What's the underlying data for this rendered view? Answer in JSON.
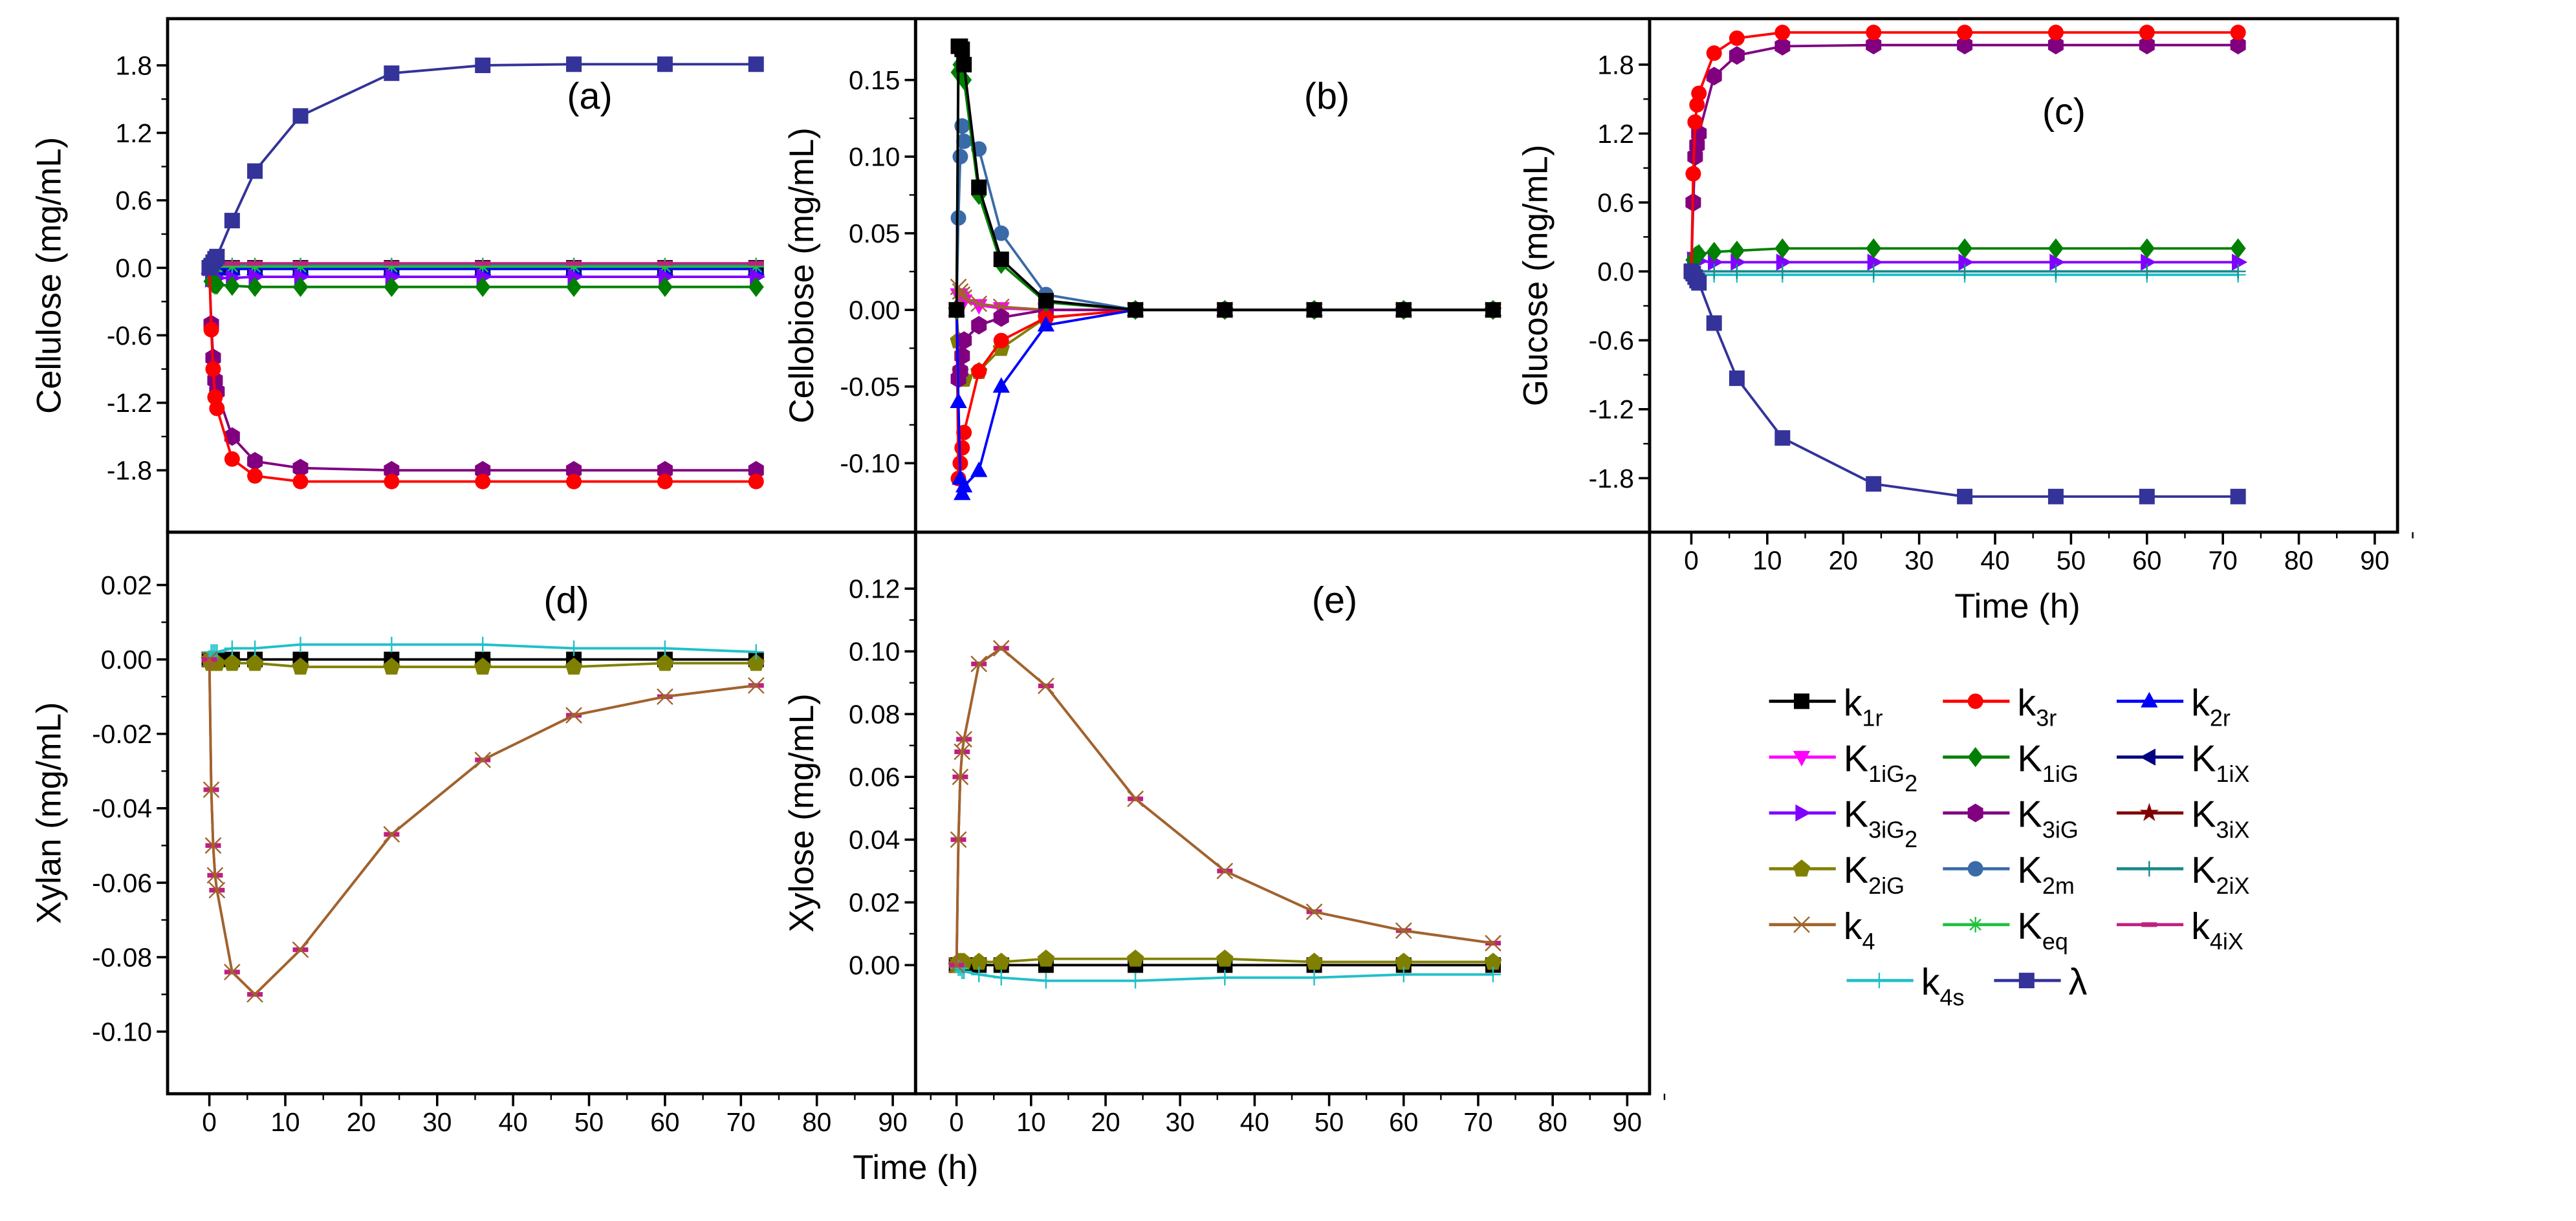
{
  "chart_data": {
    "type": "line",
    "x": [
      0,
      0.25,
      0.5,
      0.75,
      1,
      3,
      6,
      12,
      24,
      36,
      48,
      60,
      72
    ],
    "xlabel": "Time (h)",
    "xlim": [
      -5.5,
      93
    ],
    "xticks": [
      "0",
      "10",
      "20",
      "30",
      "40",
      "50",
      "60",
      "70",
      "80",
      "90"
    ],
    "legend": [
      {
        "id": "k1r",
        "main": "k",
        "sub": "1r",
        "sub2": "",
        "color": "#000000",
        "marker": "square"
      },
      {
        "id": "k3r",
        "main": "k",
        "sub": "3r",
        "sub2": "",
        "color": "#ff0000",
        "marker": "circle"
      },
      {
        "id": "k2r",
        "main": "k",
        "sub": "2r",
        "sub2": "",
        "color": "#0000ff",
        "marker": "triangle-up"
      },
      {
        "id": "K1iG2",
        "main": "K",
        "sub": "1iG",
        "sub2": "2",
        "color": "#ff00ff",
        "marker": "triangle-down"
      },
      {
        "id": "K1iG",
        "main": "K",
        "sub": "1iG",
        "sub2": "",
        "color": "#008000",
        "marker": "diamond"
      },
      {
        "id": "K1iX",
        "main": "K",
        "sub": "1iX",
        "sub2": "",
        "color": "#000080",
        "marker": "triangle-left"
      },
      {
        "id": "K3iG2",
        "main": "K",
        "sub": "3iG",
        "sub2": "2",
        "color": "#8000ff",
        "marker": "triangle-right"
      },
      {
        "id": "K3iG",
        "main": "K",
        "sub": "3iG",
        "sub2": "",
        "color": "#800080",
        "marker": "hexagon"
      },
      {
        "id": "K3iX",
        "main": "K",
        "sub": "3iX",
        "sub2": "",
        "color": "#800000",
        "marker": "star"
      },
      {
        "id": "K2iG",
        "main": "K",
        "sub": "2iG",
        "sub2": "",
        "color": "#808000",
        "marker": "pentagon"
      },
      {
        "id": "K2m",
        "main": "K",
        "sub": "2m",
        "sub2": "",
        "color": "#3a6aa8",
        "marker": "circle"
      },
      {
        "id": "K2iX",
        "main": "K",
        "sub": "2iX",
        "sub2": "",
        "color": "#1a8a8a",
        "marker": "plus"
      },
      {
        "id": "k4",
        "main": "k",
        "sub": "4",
        "sub2": "",
        "color": "#a0642a",
        "marker": "x"
      },
      {
        "id": "Keq",
        "main": "K",
        "sub": "eq",
        "sub2": "",
        "color": "#20c040",
        "marker": "asterisk"
      },
      {
        "id": "k4iX",
        "main": "k",
        "sub": "4iX",
        "sub2": "",
        "color": "#c02080",
        "marker": "dash"
      },
      {
        "id": "k4s",
        "main": "k",
        "sub": "4s",
        "sub2": "",
        "color": "#20c0c8",
        "marker": "plus"
      },
      {
        "id": "lambda",
        "main": "λ",
        "sub": "",
        "sub2": "",
        "color": "#333399",
        "marker": "square"
      }
    ],
    "panels": [
      {
        "id": "a",
        "title": "(a)",
        "ylabel": "Cellulose (mg/mL)",
        "ylim": [
          -2.35,
          2.215
        ],
        "yticks": [
          {
            "v": 1.8,
            "t": "1.8"
          },
          {
            "v": 1.2,
            "t": "1.2"
          },
          {
            "v": 0.6,
            "t": "0.6"
          },
          {
            "v": 0,
            "t": "0.0"
          },
          {
            "v": -0.6,
            "t": "-0.6"
          },
          {
            "v": -1.2,
            "t": "-1.2"
          },
          {
            "v": -1.8,
            "t": "-1.8"
          }
        ],
        "series": {
          "k1r": [
            0,
            0,
            0,
            0,
            0,
            0,
            0,
            0,
            0,
            0,
            0,
            0,
            0
          ],
          "k2r": [
            0,
            -0.01,
            -0.01,
            -0.01,
            -0.01,
            -0.01,
            -0.01,
            -0.01,
            -0.01,
            -0.01,
            -0.01,
            -0.01,
            -0.01
          ],
          "K2iX": [
            0,
            0.02,
            0.02,
            0.02,
            0.02,
            0.02,
            0.02,
            0.02,
            0.02,
            0.02,
            0.02,
            0.02,
            0.02
          ],
          "Keq": [
            0,
            0.01,
            0.01,
            0.01,
            0.01,
            0.01,
            0.01,
            0.01,
            0.01,
            0.01,
            0.01,
            0.01,
            0.01
          ],
          "k4iX": [
            0,
            0.04,
            0.04,
            0.04,
            0.04,
            0.04,
            0.04,
            0.04,
            0.04,
            0.04,
            0.04,
            0.04,
            0.04
          ],
          "K3iG2": [
            0,
            -0.1,
            -0.1,
            -0.09,
            -0.09,
            -0.09,
            -0.08,
            -0.08,
            -0.08,
            -0.08,
            -0.08,
            -0.08,
            -0.08
          ],
          "K1iG": [
            0,
            -0.12,
            -0.14,
            -0.15,
            -0.15,
            -0.16,
            -0.17,
            -0.17,
            -0.17,
            -0.17,
            -0.17,
            -0.17,
            -0.17
          ],
          "K3iG": [
            0,
            -0.5,
            -0.8,
            -1.0,
            -1.1,
            -1.5,
            -1.72,
            -1.78,
            -1.8,
            -1.8,
            -1.8,
            -1.8,
            -1.8
          ],
          "k3r": [
            0,
            -0.55,
            -0.9,
            -1.15,
            -1.25,
            -1.7,
            -1.85,
            -1.9,
            -1.9,
            -1.9,
            -1.9,
            -1.9,
            -1.9
          ],
          "lambda": [
            0,
            0.02,
            0.05,
            0.08,
            0.1,
            0.42,
            0.86,
            1.35,
            1.73,
            1.8,
            1.81,
            1.81,
            1.81
          ]
        }
      },
      {
        "id": "b",
        "title": "(b)",
        "ylabel": "Cellobiose (mg/mL)",
        "ylim": [
          -0.145,
          0.19
        ],
        "yticks": [
          {
            "v": 0.15,
            "t": "0.15"
          },
          {
            "v": 0.1,
            "t": "0.10"
          },
          {
            "v": 0.05,
            "t": "0.05"
          },
          {
            "v": 0,
            "t": "0.00"
          },
          {
            "v": -0.05,
            "t": "-0.05"
          },
          {
            "v": -0.1,
            "t": "-0.10"
          }
        ],
        "series": {
          "K1iG2": [
            0,
            0.01,
            0.01,
            0.008,
            0.006,
            0.003,
            0.001,
            0,
            0,
            0,
            0,
            0,
            0
          ],
          "k4": [
            0,
            0.015,
            0.012,
            0.01,
            0.008,
            0.004,
            0.002,
            0,
            0,
            0,
            0,
            0,
            0
          ],
          "K2iG": [
            0,
            -0.02,
            -0.04,
            -0.045,
            -0.045,
            -0.04,
            -0.025,
            -0.005,
            0,
            0,
            0,
            0,
            0
          ],
          "K3iG": [
            0,
            -0.045,
            -0.04,
            -0.03,
            -0.02,
            -0.01,
            -0.005,
            0,
            0,
            0,
            0,
            0,
            0
          ],
          "k3r": [
            0,
            -0.11,
            -0.1,
            -0.09,
            -0.08,
            -0.04,
            -0.02,
            -0.005,
            0,
            0,
            0,
            0,
            0
          ],
          "k2r": [
            0,
            -0.06,
            -0.11,
            -0.12,
            -0.115,
            -0.105,
            -0.05,
            -0.01,
            0,
            0,
            0,
            0,
            0
          ],
          "K2m": [
            0,
            0.06,
            0.1,
            0.12,
            0.11,
            0.105,
            0.05,
            0.01,
            0,
            0,
            0,
            0,
            0
          ],
          "K1iG": [
            0,
            0.155,
            0.16,
            0.16,
            0.15,
            0.075,
            0.03,
            0.005,
            0,
            0,
            0,
            0,
            0
          ],
          "k1r": [
            0,
            0.172,
            0.172,
            0.17,
            0.16,
            0.08,
            0.033,
            0.006,
            0,
            0,
            0,
            0,
            0
          ]
        }
      },
      {
        "id": "c",
        "title": "(c)",
        "ylabel": "Glucose (mg/mL)",
        "ylim": [
          -2.27,
          2.2
        ],
        "yticks": [
          {
            "v": 1.8,
            "t": "1.8"
          },
          {
            "v": 1.2,
            "t": "1.2"
          },
          {
            "v": 0.6,
            "t": "0.6"
          },
          {
            "v": 0,
            "t": "0.0"
          },
          {
            "v": -0.6,
            "t": "-0.6"
          },
          {
            "v": -1.2,
            "t": "-1.2"
          },
          {
            "v": -1.8,
            "t": "-1.8"
          }
        ],
        "series": {
          "K3iG2": [
            0,
            0.1,
            0.1,
            0.09,
            0.09,
            0.08,
            0.08,
            0.08,
            0.08,
            0.08,
            0.08,
            0.08,
            0.08
          ],
          "k4s": [
            0,
            -0.03,
            -0.03,
            -0.03,
            -0.03,
            -0.03,
            -0.03,
            -0.03,
            -0.03,
            -0.03,
            -0.03,
            -0.03,
            -0.03
          ],
          "K2iX": [
            0,
            0,
            0,
            0,
            0,
            0,
            0,
            0,
            0,
            0,
            0,
            0,
            0
          ],
          "K1iG": [
            0,
            0.1,
            0.13,
            0.14,
            0.15,
            0.17,
            0.18,
            0.2,
            0.2,
            0.2,
            0.2,
            0.2,
            0.2
          ],
          "K3iG": [
            0,
            0.6,
            1.0,
            1.1,
            1.2,
            1.7,
            1.88,
            1.96,
            1.97,
            1.97,
            1.97,
            1.97,
            1.97
          ],
          "k3r": [
            0,
            0.85,
            1.3,
            1.45,
            1.55,
            1.9,
            2.03,
            2.08,
            2.08,
            2.08,
            2.08,
            2.08,
            2.08
          ],
          "lambda": [
            0,
            -0.02,
            -0.05,
            -0.08,
            -0.1,
            -0.45,
            -0.93,
            -1.45,
            -1.85,
            -1.96,
            -1.96,
            -1.96,
            -1.96
          ]
        }
      },
      {
        "id": "d",
        "title": "(d)",
        "ylabel": "Xylan (mg/mL)",
        "ylim": [
          -0.1167,
          0.0342
        ],
        "yticks": [
          {
            "v": 0.02,
            "t": "0.02"
          },
          {
            "v": 0,
            "t": "0.00"
          },
          {
            "v": -0.02,
            "t": "-0.02"
          },
          {
            "v": -0.04,
            "t": "-0.04"
          },
          {
            "v": -0.06,
            "t": "-0.06"
          },
          {
            "v": -0.08,
            "t": "-0.08"
          },
          {
            "v": -0.1,
            "t": "-0.10"
          }
        ],
        "series": {
          "k1r": [
            0,
            0,
            0,
            0,
            0,
            0,
            0,
            0,
            0,
            0,
            0,
            0,
            0
          ],
          "K2iG": [
            0,
            -0.001,
            -0.001,
            -0.001,
            -0.001,
            -0.001,
            -0.001,
            -0.002,
            -0.002,
            -0.002,
            -0.002,
            -0.001,
            -0.001
          ],
          "k4s": [
            0,
            0.002,
            0.002,
            0.002,
            0.002,
            0.003,
            0.003,
            0.004,
            0.004,
            0.004,
            0.003,
            0.003,
            0.002
          ],
          "k4iX": [
            0,
            -0.035,
            -0.05,
            -0.058,
            -0.062,
            -0.084,
            -0.09,
            -0.078,
            -0.047,
            -0.027,
            -0.015,
            -0.01,
            -0.007
          ],
          "k4": [
            0,
            -0.035,
            -0.05,
            -0.058,
            -0.062,
            -0.084,
            -0.09,
            -0.078,
            -0.047,
            -0.027,
            -0.015,
            -0.01,
            -0.007
          ]
        }
      },
      {
        "id": "e",
        "title": "(e)",
        "ylabel": "Xylose (mg/mL)",
        "ylim": [
          -0.041,
          0.138
        ],
        "yticks": [
          {
            "v": 0.12,
            "t": "0.12"
          },
          {
            "v": 0.1,
            "t": "0.10"
          },
          {
            "v": 0.08,
            "t": "0.08"
          },
          {
            "v": 0.06,
            "t": "0.06"
          },
          {
            "v": 0.04,
            "t": "0.04"
          },
          {
            "v": 0.02,
            "t": "0.02"
          },
          {
            "v": 0,
            "t": "0.00"
          }
        ],
        "series": {
          "k1r": [
            0,
            0,
            0,
            0,
            0,
            0,
            0,
            0,
            0,
            0,
            0,
            0,
            0
          ],
          "K2iG": [
            0,
            0.001,
            0.001,
            0.001,
            0.001,
            0.001,
            0.001,
            0.002,
            0.002,
            0.002,
            0.001,
            0.001,
            0.001
          ],
          "k4s": [
            0,
            -0.001,
            -0.001,
            -0.002,
            -0.002,
            -0.003,
            -0.004,
            -0.005,
            -0.005,
            -0.004,
            -0.004,
            -0.003,
            -0.003
          ],
          "k4iX": [
            0,
            0.04,
            0.06,
            0.068,
            0.072,
            0.096,
            0.101,
            0.089,
            0.053,
            0.03,
            0.017,
            0.011,
            0.007
          ],
          "k4": [
            0,
            0.04,
            0.06,
            0.068,
            0.072,
            0.096,
            0.101,
            0.089,
            0.053,
            0.03,
            0.017,
            0.011,
            0.007
          ]
        }
      }
    ]
  }
}
